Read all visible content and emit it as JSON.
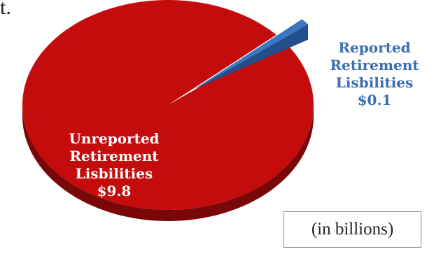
{
  "page": {
    "cut_off_text": "t.",
    "unit_note": "(in billions)"
  },
  "colors": {
    "unreported": "#c40c0c",
    "unreported_side": "#7a0707",
    "reported": "#3a76c4",
    "reported_side": "#234e8c",
    "reported_label": "#3a6db3"
  },
  "chart_data": {
    "type": "pie",
    "style": "3d",
    "slices": [
      {
        "label_lines": [
          "Unreported",
          "Retirement",
          "Lisbilities",
          "$9.8"
        ],
        "value": 9.8,
        "color": "#c40c0c"
      },
      {
        "label_lines": [
          "Reported",
          "Retirement",
          "Lisbilities",
          "$0.1"
        ],
        "value": 0.1,
        "color": "#3a76c4"
      }
    ]
  }
}
